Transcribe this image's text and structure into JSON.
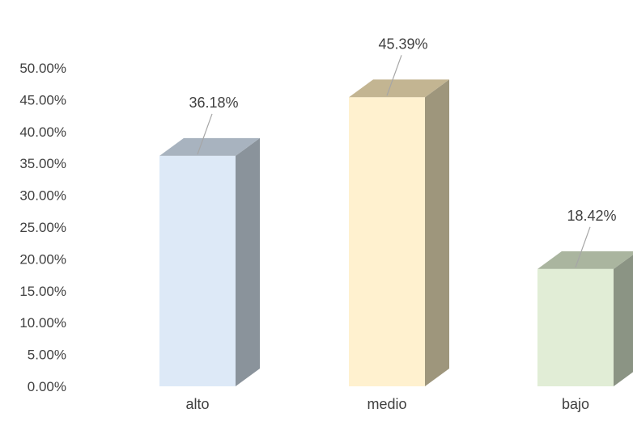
{
  "chart_data": {
    "type": "bar",
    "style": "3d-column",
    "title": "",
    "xlabel": "",
    "ylabel": "",
    "categories": [
      "alto",
      "medio",
      "bajo"
    ],
    "values": [
      36.18,
      45.39,
      18.42
    ],
    "data_labels": [
      "36.18%",
      "45.39%",
      "18.42%"
    ],
    "ylim": [
      0,
      50
    ],
    "y_ticks": [
      0,
      5,
      10,
      15,
      20,
      25,
      30,
      35,
      40,
      45,
      50
    ],
    "y_tick_labels": [
      "0.00%",
      "5.00%",
      "10.00%",
      "15.00%",
      "20.00%",
      "25.00%",
      "30.00%",
      "35.00%",
      "40.00%",
      "45.00%",
      "50.00%"
    ],
    "grid": false,
    "legend": "none",
    "colors": [
      {
        "front": "#dde9f7",
        "top": "#a8b3bf",
        "side": "#8a939b"
      },
      {
        "front": "#fff1cf",
        "top": "#c3b592",
        "side": "#9e967c"
      },
      {
        "front": "#e1edd6",
        "top": "#aab59f",
        "side": "#8b9484"
      }
    ],
    "leader_color": "#a6a6a6",
    "text_color": "#404040"
  }
}
